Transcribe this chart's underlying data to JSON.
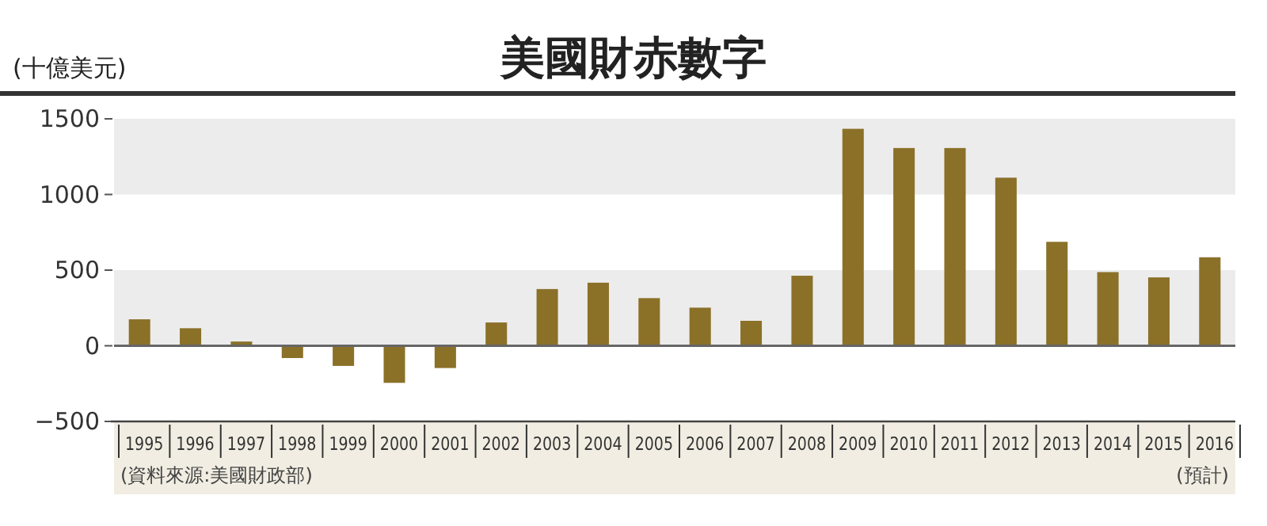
{
  "chart_data": {
    "type": "bar",
    "title": "美國財赤數字",
    "ylabel": "(十億美元)",
    "categories": [
      "1995",
      "1996",
      "1997",
      "1998",
      "1999",
      "2000",
      "2001",
      "2002",
      "2003",
      "2004",
      "2005",
      "2006",
      "2007",
      "2008",
      "2009",
      "2010",
      "2011",
      "2012",
      "2013",
      "2014",
      "2015",
      "2016"
    ],
    "values": [
      175,
      116,
      28,
      -81,
      -133,
      -245,
      -147,
      154,
      375,
      417,
      315,
      252,
      165,
      463,
      1434,
      1307,
      1307,
      1111,
      687,
      487,
      452,
      585
    ],
    "color": "#8b7028",
    "ylim": [
      -500,
      1500
    ],
    "yticks": [
      -500,
      0,
      500,
      1000,
      1500
    ],
    "bands": [
      {
        "axis": "y",
        "from": 0,
        "to": 500,
        "color": "#ececec"
      },
      {
        "axis": "y",
        "from": 1000,
        "to": 1500,
        "color": "#ececec"
      }
    ],
    "annotations": [
      "(資料來源:美國財政部)",
      "(預計)"
    ]
  }
}
